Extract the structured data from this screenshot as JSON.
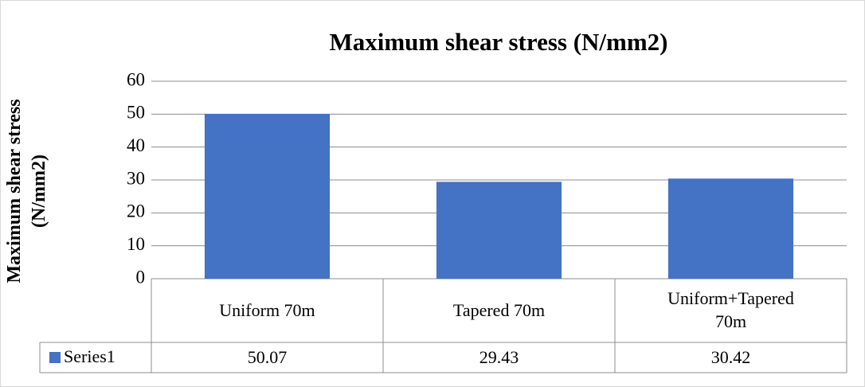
{
  "chart_data": {
    "type": "bar",
    "title": "Maximum shear stress (N/mm2)",
    "y_label": "Maximum shear stress (N/mm2)",
    "categories": [
      "Uniform 70m",
      "Tapered 70m",
      "Uniform+Tapered 70m"
    ],
    "series": [
      {
        "name": "Series1",
        "color": "#4472c4",
        "values": [
          50.07,
          29.43,
          30.42
        ]
      }
    ],
    "ylim": [
      0,
      60
    ],
    "yticks": [
      0,
      10,
      20,
      30,
      40,
      50,
      60
    ],
    "grid": true
  }
}
